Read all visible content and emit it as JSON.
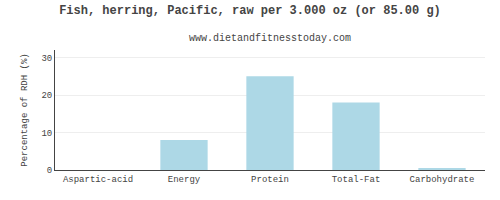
{
  "chart_data": {
    "type": "bar",
    "title": "Fish, herring, Pacific, raw per 3.000 oz (or 85.00 g)",
    "subtitle": "www.dietandfitnesstoday.com",
    "categories": [
      "Aspartic-acid",
      "Energy",
      "Protein",
      "Total-Fat",
      "Carbohydrate"
    ],
    "values": [
      0.0,
      8.0,
      25.0,
      18.0,
      0.3
    ],
    "color": "#add8e6",
    "ylabel": "Percentage of RDH (%)",
    "ylim": [
      0,
      32
    ],
    "yticks": [
      0,
      10,
      20,
      30
    ],
    "grid": true
  }
}
